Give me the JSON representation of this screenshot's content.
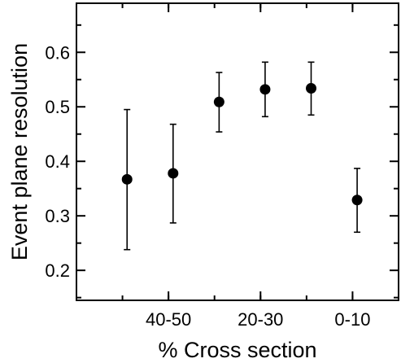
{
  "chart_data": {
    "type": "scatter",
    "title": "",
    "xlabel": "% Cross section",
    "ylabel": "Event plane resolution",
    "ylim": [
      0.145,
      0.69
    ],
    "xlim": [
      -0.5,
      6.5
    ],
    "grid": false,
    "legend": "none",
    "x_ticks": [
      {
        "x": 1.5,
        "label": "40-50"
      },
      {
        "x": 3.5,
        "label": "20-30"
      },
      {
        "x": 5.5,
        "label": "0-10"
      }
    ],
    "y_ticks": [
      0.2,
      0.3,
      0.4,
      0.5,
      0.6
    ],
    "y_tick_labels": [
      "0.2",
      "0.3",
      "0.4",
      "0.5",
      "0.6"
    ],
    "series": [
      {
        "points": [
          {
            "x": 0.6,
            "y": 0.367,
            "ylow": 0.238,
            "yhigh": 0.495
          },
          {
            "x": 1.6,
            "y": 0.378,
            "ylow": 0.287,
            "yhigh": 0.468
          },
          {
            "x": 2.6,
            "y": 0.509,
            "ylow": 0.454,
            "yhigh": 0.563
          },
          {
            "x": 3.6,
            "y": 0.532,
            "ylow": 0.482,
            "yhigh": 0.582
          },
          {
            "x": 4.6,
            "y": 0.534,
            "ylow": 0.485,
            "yhigh": 0.582
          },
          {
            "x": 5.6,
            "y": 0.329,
            "ylow": 0.27,
            "yhigh": 0.387
          }
        ]
      }
    ],
    "colors": {
      "marker": "#000000",
      "axis": "#000000",
      "background": "#ffffff"
    }
  }
}
